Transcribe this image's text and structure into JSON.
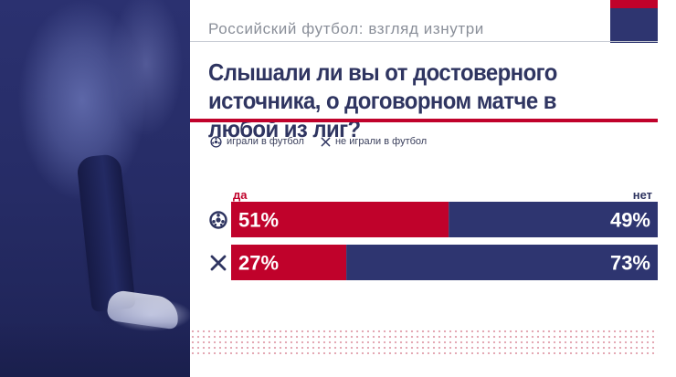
{
  "header": {
    "subtitle": "Российский футбол: взгляд изнутри",
    "title": "Слышали ли вы от достоверного источника, о договорном матче в любой из лиг?"
  },
  "legend": {
    "items": [
      {
        "icon": "soccer-ball-icon",
        "label": "играли в футбол"
      },
      {
        "icon": "cross-icon",
        "label": "не играли в футбол"
      }
    ]
  },
  "colors": {
    "yes": "#c0022b",
    "no": "#2e3570",
    "text": "#2f3561"
  },
  "chart_data": {
    "type": "bar",
    "orientation": "horizontal-stacked",
    "categories": [
      "играли в футбол",
      "не играли в футбол"
    ],
    "series": [
      {
        "name": "да",
        "values": [
          51,
          27
        ]
      },
      {
        "name": "нет",
        "values": [
          49,
          73
        ]
      }
    ],
    "value_labels": [
      [
        "51%",
        "49%"
      ],
      [
        "27%",
        "73%"
      ]
    ],
    "xlim": [
      0,
      100
    ]
  }
}
